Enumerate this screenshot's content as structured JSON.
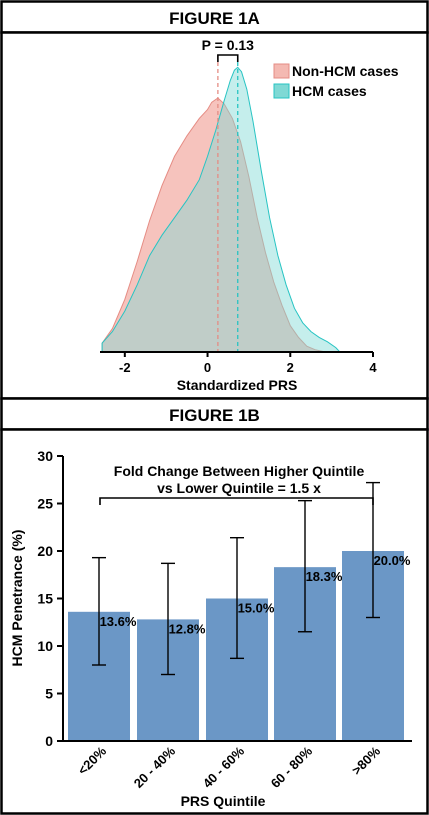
{
  "chart_data": [
    {
      "panel_title": "FIGURE 1A",
      "type": "area",
      "xlabel": "Standardized PRS",
      "ylabel": "",
      "xlim": [
        -2.6,
        4.0
      ],
      "ylim": [
        0,
        1.0
      ],
      "xticks": [
        "-2",
        "0",
        "2",
        "4"
      ],
      "xtick_values": [
        -2,
        0,
        2,
        4
      ],
      "grid": false,
      "legend_position": "top-right",
      "annotation": {
        "label": "P = 0.13",
        "x1": 0.25,
        "x2": 0.73
      },
      "series": [
        {
          "name": "Non-HCM cases",
          "color": "#f4b9b2",
          "stroke": "#e58c84",
          "mean": 0.25,
          "x": [
            -2.55,
            -2.3,
            -2.0,
            -1.7,
            -1.4,
            -1.1,
            -0.8,
            -0.5,
            -0.2,
            0.0,
            0.1,
            0.25,
            0.4,
            0.6,
            0.8,
            1.0,
            1.2,
            1.4,
            1.6,
            1.8,
            2.0,
            2.2,
            2.4,
            2.6,
            2.85
          ],
          "y": [
            0.03,
            0.08,
            0.18,
            0.31,
            0.45,
            0.57,
            0.67,
            0.74,
            0.8,
            0.83,
            0.855,
            0.87,
            0.85,
            0.8,
            0.72,
            0.6,
            0.46,
            0.34,
            0.24,
            0.16,
            0.09,
            0.05,
            0.02,
            0.008,
            0.0
          ]
        },
        {
          "name": "HCM cases",
          "color": "#7fd9d5",
          "stroke": "#27c4c3",
          "mean": 0.73,
          "x": [
            -2.55,
            -2.3,
            -2.0,
            -1.7,
            -1.4,
            -1.1,
            -0.8,
            -0.5,
            -0.2,
            0.0,
            0.2,
            0.4,
            0.55,
            0.65,
            0.73,
            0.82,
            0.95,
            1.1,
            1.3,
            1.5,
            1.7,
            1.9,
            2.1,
            2.3,
            2.5,
            2.7,
            2.9,
            3.1,
            3.2
          ],
          "y": [
            0.03,
            0.07,
            0.14,
            0.23,
            0.33,
            0.4,
            0.46,
            0.52,
            0.59,
            0.67,
            0.76,
            0.86,
            0.93,
            0.965,
            0.975,
            0.96,
            0.9,
            0.79,
            0.62,
            0.46,
            0.33,
            0.23,
            0.15,
            0.1,
            0.07,
            0.05,
            0.035,
            0.015,
            0.0
          ]
        }
      ]
    },
    {
      "panel_title": "FIGURE 1B",
      "type": "bar",
      "title": "Fold Change Between Higher Quintile",
      "subtitle": "vs Lower Quintile = 1.5 x",
      "xlabel": "PRS Quintile",
      "ylabel": "HCM Penetrance (%)",
      "ylim": [
        0,
        30
      ],
      "yticks": [
        0,
        5,
        10,
        15,
        20,
        25,
        30
      ],
      "grid": false,
      "bar_color": "#6b97c6",
      "categories": [
        "<20%",
        "20 - 40%",
        "40 - 60%",
        "60 - 80%",
        ">80%"
      ],
      "values": [
        13.6,
        12.8,
        15.0,
        18.3,
        20.0
      ],
      "value_labels": [
        "13.6%",
        "12.8%",
        "15.0%",
        "18.3%",
        "20.0%"
      ],
      "ci_lower": [
        8.0,
        7.0,
        8.7,
        11.5,
        13.0
      ],
      "ci_upper": [
        19.3,
        18.7,
        21.4,
        25.3,
        27.2
      ]
    }
  ]
}
